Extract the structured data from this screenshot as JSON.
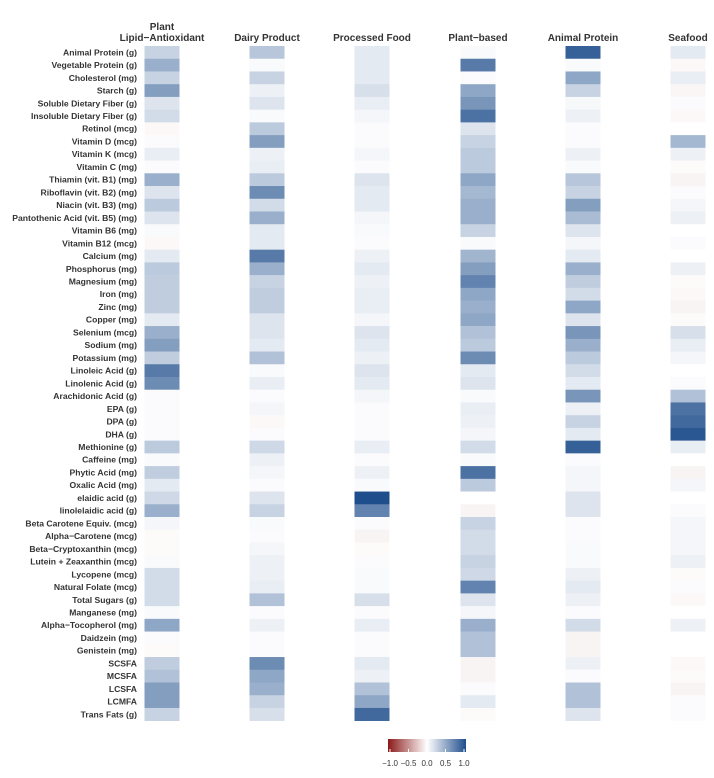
{
  "chart_data": {
    "type": "heatmap",
    "columns": [
      [
        "Plant",
        "Lipid−Antioxidant"
      ],
      [
        "Dairy Product"
      ],
      [
        "Processed Food"
      ],
      [
        "Plant−based"
      ],
      [
        "Animal Protein"
      ],
      [
        "Seafood"
      ]
    ],
    "rows": [
      "Animal Protein (g)",
      "Vegetable Protein (g)",
      "Cholesterol (mg)",
      "Starch (g)",
      "Soluble Dietary Fiber (g)",
      "Insoluble Dietary Fiber (g)",
      "Retinol (mcg)",
      "Vitamin D (mcg)",
      "Vitamin K (mcg)",
      "Vitamin C (mg)",
      "Thiamin (vit. B1) (mg)",
      "Riboflavin (vit. B2) (mg)",
      "Niacin (vit. B3) (mg)",
      "Pantothenic Acid (vit. B5) (mg)",
      "Vitamin B6 (mg)",
      "Vitamin B12 (mcg)",
      "Calcium (mg)",
      "Phosphorus (mg)",
      "Magnesium (mg)",
      "Iron (mg)",
      "Zinc (mg)",
      "Copper (mg)",
      "Selenium (mcg)",
      "Sodium (mg)",
      "Potassium (mg)",
      "Linoleic Acid (g)",
      "Linolenic Acid (g)",
      "Arachidonic Acid (g)",
      "EPA (g)",
      "DPA (g)",
      "DHA (g)",
      "Methionine (g)",
      "Caffeine (mg)",
      "Phytic Acid (mg)",
      "Oxalic Acid (mg)",
      "elaidic acid (g)",
      "linolelaidic acid (g)",
      "Beta Carotene Equiv. (mcg)",
      "Alpha−Carotene (mcg)",
      "Beta−Cryptoxanthin (mcg)",
      "Lutein + Zeaxanthin (mcg)",
      "Lycopene (mcg)",
      "Natural Folate (mcg)",
      "Total Sugars (g)",
      "Manganese (mg)",
      "Alpha−Tocopherol (mg)",
      "Daidzein (mg)",
      "Genistein (mg)",
      "SCSFA",
      "MCSFA",
      "LCSFA",
      "LCMFA",
      "Trans Fats (g)"
    ],
    "values": [
      [
        0.25,
        0.32,
        0.12,
        0.03,
        0.9,
        0.12
      ],
      [
        0.45,
        0.03,
        0.12,
        0.75,
        0.03,
        -0.03
      ],
      [
        0.25,
        0.25,
        0.12,
        0.02,
        0.5,
        0.1
      ],
      [
        0.55,
        0.08,
        0.18,
        0.5,
        0.25,
        -0.04
      ],
      [
        0.15,
        0.15,
        0.1,
        0.6,
        0.04,
        0.02
      ],
      [
        0.2,
        0.03,
        0.05,
        0.8,
        0.08,
        -0.03
      ],
      [
        -0.03,
        0.3,
        0.02,
        0.15,
        0.02,
        0.0
      ],
      [
        0.02,
        0.55,
        0.02,
        0.25,
        0.02,
        0.4
      ],
      [
        0.1,
        0.08,
        0.05,
        0.3,
        0.08,
        0.08
      ],
      [
        0.02,
        0.1,
        0.02,
        0.3,
        0.03,
        -0.02
      ],
      [
        0.45,
        0.3,
        0.15,
        0.5,
        0.32,
        -0.05
      ],
      [
        0.15,
        0.65,
        0.12,
        0.4,
        0.25,
        0.02
      ],
      [
        0.3,
        0.2,
        0.12,
        0.45,
        0.55,
        0.05
      ],
      [
        0.15,
        0.45,
        0.05,
        0.45,
        0.38,
        0.08
      ],
      [
        0.03,
        0.12,
        0.03,
        0.25,
        0.15,
        0.0
      ],
      [
        -0.03,
        0.12,
        0.02,
        0.03,
        0.05,
        0.02
      ],
      [
        0.12,
        0.75,
        0.08,
        0.42,
        0.12,
        0.0
      ],
      [
        0.3,
        0.45,
        0.12,
        0.55,
        0.45,
        0.08
      ],
      [
        0.28,
        0.25,
        0.08,
        0.7,
        0.28,
        -0.02
      ],
      [
        0.28,
        0.28,
        0.1,
        0.5,
        0.2,
        -0.03
      ],
      [
        0.28,
        0.28,
        0.1,
        0.45,
        0.5,
        -0.05
      ],
      [
        0.12,
        0.15,
        0.05,
        0.5,
        0.15,
        -0.02
      ],
      [
        0.45,
        0.15,
        0.15,
        0.35,
        0.6,
        0.18
      ],
      [
        0.55,
        0.12,
        0.12,
        0.3,
        0.45,
        0.1
      ],
      [
        0.28,
        0.35,
        0.08,
        0.65,
        0.3,
        0.05
      ],
      [
        0.75,
        0.03,
        0.15,
        0.12,
        0.2,
        0.0
      ],
      [
        0.65,
        0.1,
        0.12,
        0.15,
        0.12,
        0.02
      ],
      [
        0.02,
        0.02,
        0.05,
        0.03,
        0.6,
        0.35
      ],
      [
        0.02,
        0.05,
        0.02,
        0.1,
        0.08,
        0.8
      ],
      [
        0.02,
        -0.03,
        0.02,
        0.08,
        0.25,
        0.85
      ],
      [
        0.02,
        0.02,
        0.02,
        0.05,
        0.12,
        0.95
      ],
      [
        0.3,
        0.22,
        0.1,
        0.2,
        0.9,
        0.1
      ],
      [
        0.03,
        0.08,
        0.02,
        0.03,
        0.02,
        0.0
      ],
      [
        0.28,
        0.05,
        0.08,
        0.8,
        0.05,
        -0.05
      ],
      [
        0.12,
        0.02,
        0.03,
        0.3,
        0.05,
        0.05
      ],
      [
        0.22,
        0.15,
        1.0,
        0.0,
        0.15,
        0.0
      ],
      [
        0.45,
        0.25,
        0.7,
        -0.05,
        0.15,
        0.02
      ],
      [
        0.05,
        0.03,
        0.02,
        0.25,
        0.02,
        0.05
      ],
      [
        -0.02,
        0.02,
        -0.05,
        0.2,
        0.02,
        0.05
      ],
      [
        -0.02,
        0.05,
        -0.02,
        0.2,
        0.03,
        0.05
      ],
      [
        0.03,
        0.08,
        0.02,
        0.25,
        0.03,
        0.08
      ],
      [
        0.2,
        0.08,
        0.03,
        0.22,
        0.08,
        -0.02
      ],
      [
        0.2,
        0.1,
        0.03,
        0.7,
        0.12,
        0.02
      ],
      [
        0.2,
        0.35,
        0.18,
        0.15,
        0.08,
        -0.03
      ],
      [
        0.03,
        0.02,
        0.02,
        0.05,
        0.02,
        0.0
      ],
      [
        0.5,
        0.08,
        0.1,
        0.45,
        0.2,
        0.08
      ],
      [
        0.02,
        0.02,
        0.02,
        0.35,
        -0.05,
        0.0
      ],
      [
        -0.02,
        0.02,
        0.02,
        0.35,
        -0.05,
        0.0
      ],
      [
        0.28,
        0.65,
        0.12,
        -0.05,
        0.08,
        -0.03
      ],
      [
        0.35,
        0.5,
        0.08,
        -0.05,
        0.02,
        -0.02
      ],
      [
        0.55,
        0.45,
        0.35,
        0.02,
        0.35,
        -0.05
      ],
      [
        0.55,
        0.25,
        0.5,
        0.12,
        0.35,
        0.02
      ],
      [
        0.25,
        0.18,
        0.85,
        -0.02,
        0.15,
        0.02
      ]
    ],
    "value_range": [
      -1,
      1
    ],
    "colorscale": {
      "low": "#8b1a1a",
      "mid": "#ffffff",
      "high": "#1f4e8c"
    },
    "colorbar": {
      "ticks": [
        "−1.0",
        "−0.5",
        "0.0",
        "0.5",
        "1.0"
      ],
      "placement": "bottom"
    }
  }
}
